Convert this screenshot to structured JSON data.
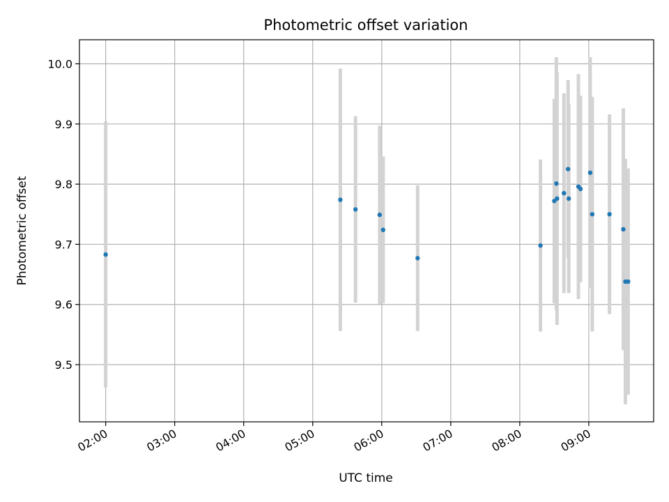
{
  "chart_data": {
    "type": "scatter",
    "title": "Photometric offset variation",
    "xlabel": "UTC time",
    "ylabel": "Photometric offset",
    "x_range_hours": [
      1.62,
      9.94
    ],
    "ylim": [
      9.405,
      10.04
    ],
    "grid": true,
    "legend": "none",
    "x_ticks": [
      {
        "value": 2,
        "label": "02:00"
      },
      {
        "value": 3,
        "label": "03:00"
      },
      {
        "value": 4,
        "label": "04:00"
      },
      {
        "value": 5,
        "label": "05:00"
      },
      {
        "value": 6,
        "label": "06:00"
      },
      {
        "value": 7,
        "label": "07:00"
      },
      {
        "value": 8,
        "label": "08:00"
      },
      {
        "value": 9,
        "label": "09:00"
      }
    ],
    "y_ticks": [
      {
        "value": 9.5,
        "label": "9.5"
      },
      {
        "value": 9.6,
        "label": "9.6"
      },
      {
        "value": 9.7,
        "label": "9.7"
      },
      {
        "value": 9.8,
        "label": "9.8"
      },
      {
        "value": 9.9,
        "label": "9.9"
      },
      {
        "value": 10.0,
        "label": "10.0"
      }
    ],
    "colors": {
      "point": "#1f77b4",
      "errorbar": "#d3d3d3",
      "grid": "#b0b0b0"
    },
    "points": [
      {
        "x": 2.0,
        "y": 9.683,
        "err": 0.221
      },
      {
        "x": 5.4,
        "y": 9.774,
        "err": 0.218
      },
      {
        "x": 5.62,
        "y": 9.758,
        "err": 0.155
      },
      {
        "x": 5.97,
        "y": 9.749,
        "err": 0.148
      },
      {
        "x": 6.02,
        "y": 9.724,
        "err": 0.122
      },
      {
        "x": 6.52,
        "y": 9.677,
        "err": 0.121
      },
      {
        "x": 8.3,
        "y": 9.698,
        "err": 0.143
      },
      {
        "x": 8.5,
        "y": 9.772,
        "err": 0.17
      },
      {
        "x": 8.53,
        "y": 9.801,
        "err": 0.21
      },
      {
        "x": 8.54,
        "y": 9.776,
        "err": 0.21
      },
      {
        "x": 8.64,
        "y": 9.785,
        "err": 0.166
      },
      {
        "x": 8.7,
        "y": 9.825,
        "err": 0.148
      },
      {
        "x": 8.71,
        "y": 9.776,
        "err": 0.157
      },
      {
        "x": 8.85,
        "y": 9.796,
        "err": 0.187
      },
      {
        "x": 8.88,
        "y": 9.792,
        "err": 0.155
      },
      {
        "x": 9.02,
        "y": 9.819,
        "err": 0.192
      },
      {
        "x": 9.05,
        "y": 9.75,
        "err": 0.195
      },
      {
        "x": 9.3,
        "y": 9.75,
        "err": 0.166
      },
      {
        "x": 9.5,
        "y": 9.725,
        "err": 0.201
      },
      {
        "x": 9.53,
        "y": 9.638,
        "err": 0.204
      },
      {
        "x": 9.57,
        "y": 9.638,
        "err": 0.188
      }
    ]
  }
}
